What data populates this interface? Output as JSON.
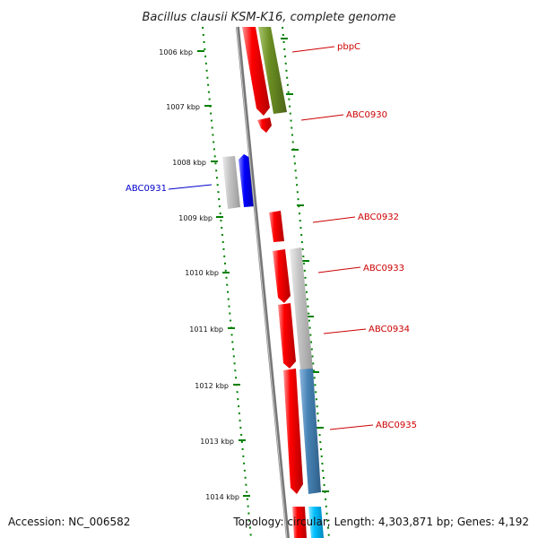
{
  "title": "Bacillus clausii KSM-K16, complete genome",
  "footer": {
    "accession": "Accession: NC_006582",
    "topology": "Topology: circular; Length: 4,303,871 bp; Genes: 4,192"
  },
  "colors": {
    "forward_gene": "#ff0000",
    "reverse_gene": "#0000ff",
    "pbpC_partner": "#6b8e23",
    "grey_feature": "#b4b4b4",
    "steel_feature": "#4682b4",
    "cyan_feature": "#00bfff",
    "tick": "#008000",
    "backbone": "#808080",
    "label_red": "#cc0000",
    "label_blue": "#0000cc"
  },
  "scale": {
    "ticks": [
      "1006 kbp",
      "1007 kbp",
      "1008 kbp",
      "1009 kbp",
      "1010 kbp",
      "1011 kbp",
      "1012 kbp",
      "1013 kbp",
      "1014 kbp"
    ]
  },
  "genes": [
    {
      "label": "pbpC",
      "strand": "forward"
    },
    {
      "label": "ABC0930",
      "strand": "forward"
    },
    {
      "label": "ABC0931",
      "strand": "reverse"
    },
    {
      "label": "ABC0932",
      "strand": "forward"
    },
    {
      "label": "ABC0933",
      "strand": "forward"
    },
    {
      "label": "ABC0934",
      "strand": "forward"
    },
    {
      "label": "ABC0935",
      "strand": "forward"
    }
  ]
}
